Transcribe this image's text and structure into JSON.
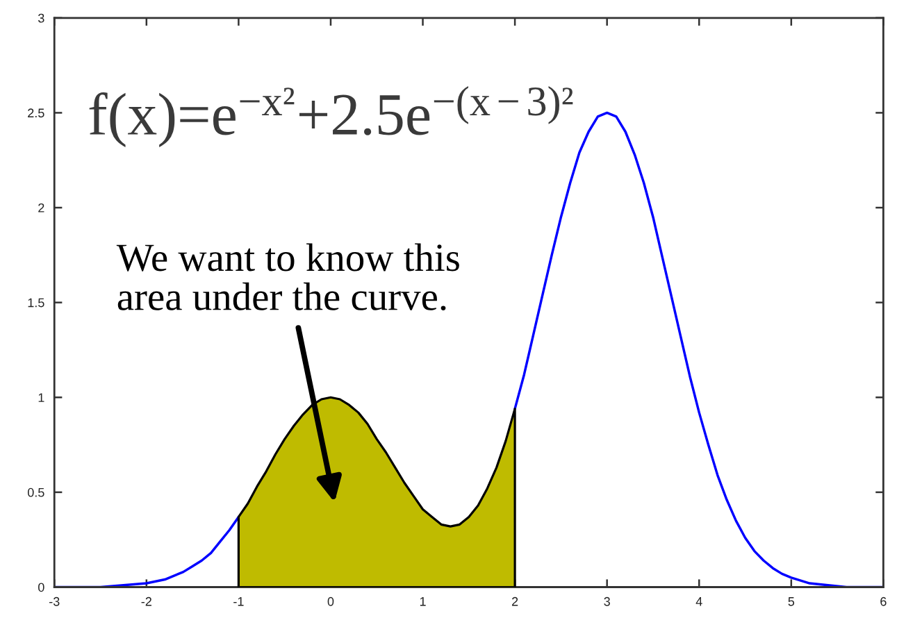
{
  "chart_data": {
    "type": "line",
    "xlim": [
      -3,
      6
    ],
    "ylim": [
      0,
      3
    ],
    "xticks": [
      -3,
      -2,
      -1,
      0,
      1,
      2,
      3,
      4,
      5,
      6
    ],
    "yticks": [
      0,
      0.5,
      1,
      1.5,
      2,
      2.5,
      3
    ],
    "series": [
      {
        "color": "#0000ff",
        "x": [
          -3,
          -2.5,
          -2,
          -1.8,
          -1.6,
          -1.5,
          -1.4,
          -1.3,
          -1.2,
          -1.1,
          -1,
          -0.9,
          -0.8,
          -0.7,
          -0.6,
          -0.5,
          -0.4,
          -0.3,
          -0.2,
          -0.1,
          0,
          0.1,
          0.2,
          0.3,
          0.4,
          0.5,
          0.6,
          0.7,
          0.8,
          0.9,
          1,
          1.1,
          1.2,
          1.3,
          1.4,
          1.5,
          1.6,
          1.7,
          1.8,
          1.9,
          2,
          2.1,
          2.2,
          2.3,
          2.4,
          2.5,
          2.6,
          2.7,
          2.8,
          2.9,
          3,
          3.1,
          3.2,
          3.3,
          3.4,
          3.5,
          3.6,
          3.7,
          3.8,
          3.9,
          4,
          4.1,
          4.2,
          4.3,
          4.4,
          4.5,
          4.6,
          4.7,
          4.8,
          4.9,
          5,
          5.2,
          5.4,
          5.6,
          6
        ],
        "values": [
          0,
          0,
          0.02,
          0.04,
          0.08,
          0.11,
          0.14,
          0.18,
          0.24,
          0.3,
          0.37,
          null,
          null,
          null,
          null,
          null,
          null,
          null,
          null,
          null,
          null,
          null,
          null,
          null,
          null,
          null,
          null,
          null,
          null,
          null,
          null,
          null,
          null,
          null,
          null,
          null,
          null,
          null,
          null,
          null,
          0.94,
          1.12,
          1.33,
          1.54,
          1.75,
          1.95,
          2.13,
          2.29,
          2.4,
          2.48,
          2.5,
          2.48,
          2.4,
          2.28,
          2.13,
          1.95,
          1.74,
          1.53,
          1.32,
          1.11,
          0.92,
          0.75,
          0.59,
          0.46,
          0.35,
          0.26,
          0.19,
          0.14,
          0.1,
          0.07,
          0.05,
          0.02,
          0.01,
          0,
          0
        ]
      },
      {
        "type": "area",
        "color": "#bfbb00",
        "x": [
          -1,
          -0.9,
          -0.8,
          -0.7,
          -0.6,
          -0.5,
          -0.4,
          -0.3,
          -0.2,
          -0.1,
          0,
          0.1,
          0.2,
          0.3,
          0.4,
          0.5,
          0.6,
          0.7,
          0.8,
          0.9,
          1,
          1.1,
          1.2,
          1.3,
          1.4,
          1.5,
          1.6,
          1.7,
          1.8,
          1.9,
          2
        ],
        "values": [
          0.37,
          0.44,
          0.53,
          0.61,
          0.7,
          0.78,
          0.85,
          0.91,
          0.96,
          0.99,
          1,
          0.99,
          0.96,
          0.92,
          0.86,
          0.78,
          0.71,
          0.63,
          0.55,
          0.48,
          0.41,
          0.37,
          0.33,
          0.32,
          0.33,
          0.37,
          0.43,
          0.52,
          0.63,
          0.77,
          0.94
        ]
      }
    ],
    "annotations": [
      "f(x)=e$^{−x²}$+2.5e$^{−(x−3)²}$",
      "We want to know this\narea under the curve."
    ]
  }
}
